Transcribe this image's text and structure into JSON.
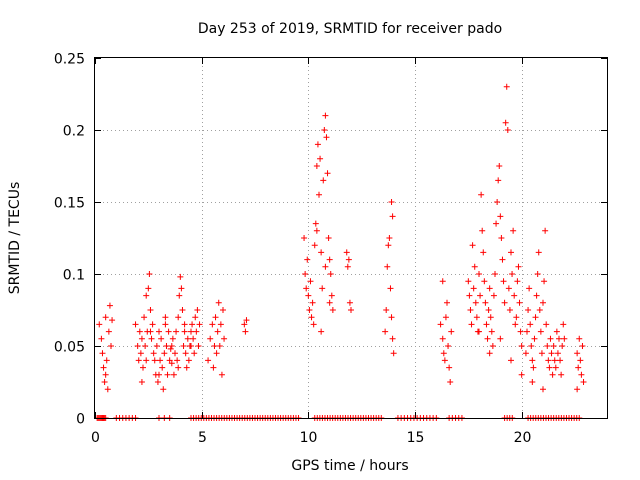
{
  "chart_data": {
    "type": "scatter",
    "title": "Day 253 of 2019, SRMTID for receiver pado",
    "xlabel": "GPS time / hours",
    "ylabel": "SRMTID / TECUs",
    "xlim": [
      0,
      24
    ],
    "ylim": [
      0,
      0.25
    ],
    "x_ticks": [
      0,
      5,
      10,
      15,
      20
    ],
    "x_tick_labels": [
      "0",
      "5",
      "10",
      "15",
      "20"
    ],
    "y_ticks": [
      0,
      0.05,
      0.1,
      0.15,
      0.2,
      0.25
    ],
    "y_tick_labels": [
      "0",
      "0.05",
      "0.1",
      "0.15",
      "0.2",
      "0.25"
    ],
    "grid": true,
    "marker": "+",
    "colors": {
      "series": "#ff0000",
      "grid": "#a0a0a0",
      "axes": "#000000"
    },
    "series": [
      {
        "name": "SRMTID",
        "points": [
          [
            0.2,
            0.065
          ],
          [
            0.3,
            0.055
          ],
          [
            0.35,
            0.045
          ],
          [
            0.4,
            0.035
          ],
          [
            0.45,
            0.025
          ],
          [
            0.5,
            0.07
          ],
          [
            0.55,
            0.04
          ],
          [
            0.6,
            0.02
          ],
          [
            0.65,
            0.06
          ],
          [
            0.7,
            0.078
          ],
          [
            0.75,
            0.05
          ],
          [
            0.8,
            0.068
          ],
          [
            0.5,
            0.03
          ],
          [
            1.9,
            0.065
          ],
          [
            2.0,
            0.05
          ],
          [
            2.05,
            0.04
          ],
          [
            2.1,
            0.06
          ],
          [
            2.15,
            0.045
          ],
          [
            2.2,
            0.055
          ],
          [
            2.25,
            0.035
          ],
          [
            2.3,
            0.07
          ],
          [
            2.35,
            0.05
          ],
          [
            2.4,
            0.085
          ],
          [
            2.45,
            0.06
          ],
          [
            2.5,
            0.09
          ],
          [
            2.55,
            0.1
          ],
          [
            2.6,
            0.075
          ],
          [
            2.65,
            0.055
          ],
          [
            2.7,
            0.065
          ],
          [
            2.75,
            0.045
          ],
          [
            2.8,
            0.04
          ],
          [
            2.85,
            0.03
          ],
          [
            2.9,
            0.05
          ],
          [
            2.95,
            0.025
          ],
          [
            3.0,
            0.06
          ],
          [
            3.05,
            0.04
          ],
          [
            3.1,
            0.055
          ],
          [
            3.15,
            0.035
          ],
          [
            3.2,
            0.02
          ],
          [
            3.25,
            0.045
          ],
          [
            3.3,
            0.065
          ],
          [
            3.35,
            0.05
          ],
          [
            3.4,
            0.03
          ],
          [
            3.45,
            0.06
          ],
          [
            3.5,
            0.04
          ],
          [
            3.55,
            0.048
          ],
          [
            3.6,
            0.038
          ],
          [
            3.65,
            0.055
          ],
          [
            3.7,
            0.03
          ],
          [
            3.75,
            0.045
          ],
          [
            3.8,
            0.06
          ],
          [
            3.85,
            0.04
          ],
          [
            3.9,
            0.07
          ],
          [
            3.95,
            0.085
          ],
          [
            4.0,
            0.098
          ],
          [
            4.05,
            0.09
          ],
          [
            4.1,
            0.075
          ],
          [
            4.15,
            0.05
          ],
          [
            4.2,
            0.06
          ],
          [
            4.25,
            0.045
          ],
          [
            4.3,
            0.035
          ],
          [
            4.35,
            0.055
          ],
          [
            4.4,
            0.04
          ],
          [
            4.45,
            0.05
          ],
          [
            4.5,
            0.06
          ],
          [
            4.55,
            0.065
          ],
          [
            4.6,
            0.055
          ],
          [
            4.65,
            0.045
          ],
          [
            4.7,
            0.07
          ],
          [
            4.75,
            0.06
          ],
          [
            4.8,
            0.075
          ],
          [
            4.85,
            0.05
          ],
          [
            4.9,
            0.065
          ],
          [
            2.2,
            0.025
          ],
          [
            2.4,
            0.04
          ],
          [
            2.6,
            0.06
          ],
          [
            3.0,
            0.03
          ],
          [
            3.3,
            0.07
          ],
          [
            3.6,
            0.05
          ],
          [
            3.9,
            0.035
          ],
          [
            4.2,
            0.065
          ],
          [
            4.5,
            0.05
          ],
          [
            5.3,
            0.04
          ],
          [
            5.4,
            0.055
          ],
          [
            5.5,
            0.065
          ],
          [
            5.55,
            0.035
          ],
          [
            5.6,
            0.05
          ],
          [
            5.65,
            0.07
          ],
          [
            5.7,
            0.045
          ],
          [
            5.75,
            0.06
          ],
          [
            5.8,
            0.08
          ],
          [
            5.85,
            0.05
          ],
          [
            5.9,
            0.065
          ],
          [
            5.95,
            0.03
          ],
          [
            6.0,
            0.075
          ],
          [
            6.05,
            0.055
          ],
          [
            7.0,
            0.065
          ],
          [
            7.05,
            0.06
          ],
          [
            7.1,
            0.068
          ],
          [
            9.8,
            0.125
          ],
          [
            9.85,
            0.1
          ],
          [
            9.9,
            0.09
          ],
          [
            9.95,
            0.11
          ],
          [
            10.0,
            0.085
          ],
          [
            10.05,
            0.075
          ],
          [
            10.1,
            0.095
          ],
          [
            10.15,
            0.07
          ],
          [
            10.2,
            0.08
          ],
          [
            10.25,
            0.065
          ],
          [
            10.3,
            0.12
          ],
          [
            10.35,
            0.135
          ],
          [
            10.4,
            0.175
          ],
          [
            10.45,
            0.19
          ],
          [
            10.5,
            0.155
          ],
          [
            10.55,
            0.18
          ],
          [
            10.6,
            0.06
          ],
          [
            10.65,
            0.09
          ],
          [
            10.7,
            0.165
          ],
          [
            10.75,
            0.2
          ],
          [
            10.8,
            0.21
          ],
          [
            10.85,
            0.195
          ],
          [
            10.9,
            0.17
          ],
          [
            10.95,
            0.125
          ],
          [
            11.0,
            0.11
          ],
          [
            11.05,
            0.1
          ],
          [
            11.1,
            0.085
          ],
          [
            11.15,
            0.075
          ],
          [
            10.4,
            0.13
          ],
          [
            10.6,
            0.115
          ],
          [
            10.8,
            0.105
          ],
          [
            11.0,
            0.08
          ],
          [
            11.8,
            0.115
          ],
          [
            11.85,
            0.105
          ],
          [
            11.9,
            0.11
          ],
          [
            11.95,
            0.08
          ],
          [
            12.0,
            0.075
          ],
          [
            13.6,
            0.06
          ],
          [
            13.65,
            0.075
          ],
          [
            13.7,
            0.105
          ],
          [
            13.75,
            0.12
          ],
          [
            13.8,
            0.125
          ],
          [
            13.85,
            0.09
          ],
          [
            13.9,
            0.07
          ],
          [
            13.95,
            0.055
          ],
          [
            14.0,
            0.045
          ],
          [
            13.9,
            0.15
          ],
          [
            13.95,
            0.14
          ],
          [
            16.2,
            0.065
          ],
          [
            16.3,
            0.055
          ],
          [
            16.35,
            0.045
          ],
          [
            16.4,
            0.04
          ],
          [
            16.45,
            0.07
          ],
          [
            16.5,
            0.08
          ],
          [
            16.55,
            0.05
          ],
          [
            16.6,
            0.035
          ],
          [
            16.65,
            0.025
          ],
          [
            16.3,
            0.095
          ],
          [
            16.7,
            0.06
          ],
          [
            17.5,
            0.095
          ],
          [
            17.55,
            0.085
          ],
          [
            17.6,
            0.075
          ],
          [
            17.65,
            0.065
          ],
          [
            17.7,
            0.12
          ],
          [
            17.75,
            0.09
          ],
          [
            17.8,
            0.105
          ],
          [
            17.85,
            0.08
          ],
          [
            17.9,
            0.07
          ],
          [
            17.95,
            0.06
          ],
          [
            18.0,
            0.1
          ],
          [
            18.05,
            0.085
          ],
          [
            18.1,
            0.155
          ],
          [
            18.15,
            0.13
          ],
          [
            18.2,
            0.115
          ],
          [
            18.25,
            0.095
          ],
          [
            18.3,
            0.08
          ],
          [
            18.35,
            0.065
          ],
          [
            18.4,
            0.055
          ],
          [
            18.45,
            0.075
          ],
          [
            18.5,
            0.09
          ],
          [
            18.55,
            0.07
          ],
          [
            18.6,
            0.06
          ],
          [
            18.65,
            0.05
          ],
          [
            18.7,
            0.085
          ],
          [
            18.75,
            0.1
          ],
          [
            18.8,
            0.135
          ],
          [
            18.85,
            0.15
          ],
          [
            18.9,
            0.165
          ],
          [
            18.95,
            0.175
          ],
          [
            19.0,
            0.14
          ],
          [
            19.05,
            0.125
          ],
          [
            19.1,
            0.11
          ],
          [
            19.15,
            0.095
          ],
          [
            19.2,
            0.08
          ],
          [
            19.25,
            0.205
          ],
          [
            19.3,
            0.23
          ],
          [
            19.35,
            0.2
          ],
          [
            19.4,
            0.09
          ],
          [
            19.45,
            0.075
          ],
          [
            19.5,
            0.115
          ],
          [
            19.55,
            0.1
          ],
          [
            19.6,
            0.13
          ],
          [
            19.65,
            0.085
          ],
          [
            19.7,
            0.065
          ],
          [
            19.75,
            0.07
          ],
          [
            19.8,
            0.095
          ],
          [
            19.85,
            0.105
          ],
          [
            19.9,
            0.08
          ],
          [
            19.95,
            0.06
          ],
          [
            20.0,
            0.05
          ],
          [
            20.2,
            0.045
          ],
          [
            20.25,
            0.06
          ],
          [
            20.3,
            0.075
          ],
          [
            20.35,
            0.09
          ],
          [
            20.4,
            0.065
          ],
          [
            20.45,
            0.05
          ],
          [
            20.5,
            0.04
          ],
          [
            20.55,
            0.035
          ],
          [
            20.6,
            0.055
          ],
          [
            20.65,
            0.07
          ],
          [
            20.7,
            0.085
          ],
          [
            20.75,
            0.1
          ],
          [
            20.8,
            0.115
          ],
          [
            20.85,
            0.075
          ],
          [
            20.9,
            0.06
          ],
          [
            20.95,
            0.045
          ],
          [
            21.0,
            0.08
          ],
          [
            21.05,
            0.095
          ],
          [
            21.1,
            0.13
          ],
          [
            21.15,
            0.065
          ],
          [
            21.2,
            0.05
          ],
          [
            21.25,
            0.04
          ],
          [
            21.3,
            0.035
          ],
          [
            21.35,
            0.055
          ],
          [
            21.4,
            0.045
          ],
          [
            21.45,
            0.03
          ],
          [
            21.5,
            0.05
          ],
          [
            21.55,
            0.04
          ],
          [
            21.6,
            0.035
          ],
          [
            21.65,
            0.06
          ],
          [
            21.7,
            0.045
          ],
          [
            21.75,
            0.055
          ],
          [
            21.8,
            0.04
          ],
          [
            21.85,
            0.03
          ],
          [
            21.9,
            0.05
          ],
          [
            21.95,
            0.065
          ],
          [
            22.0,
            0.055
          ],
          [
            18.0,
            0.06
          ],
          [
            18.5,
            0.045
          ],
          [
            19.0,
            0.055
          ],
          [
            19.5,
            0.04
          ],
          [
            20.0,
            0.03
          ],
          [
            20.5,
            0.025
          ],
          [
            21.0,
            0.02
          ],
          [
            22.6,
            0.045
          ],
          [
            22.65,
            0.035
          ],
          [
            22.7,
            0.055
          ],
          [
            22.75,
            0.04
          ],
          [
            22.8,
            0.03
          ],
          [
            22.85,
            0.05
          ],
          [
            22.9,
            0.025
          ],
          [
            22.6,
            0.02
          ]
        ]
      }
    ],
    "zero_level_runs": [
      [
        0.1,
        0.5,
        0.05
      ],
      [
        1.0,
        2.0,
        0.15
      ],
      [
        3.0,
        3.5,
        0.25
      ],
      [
        4.5,
        9.6,
        0.12
      ],
      [
        10.3,
        13.5,
        0.12
      ],
      [
        14.2,
        16.0,
        0.15
      ],
      [
        16.6,
        17.2,
        0.15
      ],
      [
        19.2,
        19.6,
        0.12
      ],
      [
        20.3,
        22.8,
        0.12
      ]
    ]
  }
}
